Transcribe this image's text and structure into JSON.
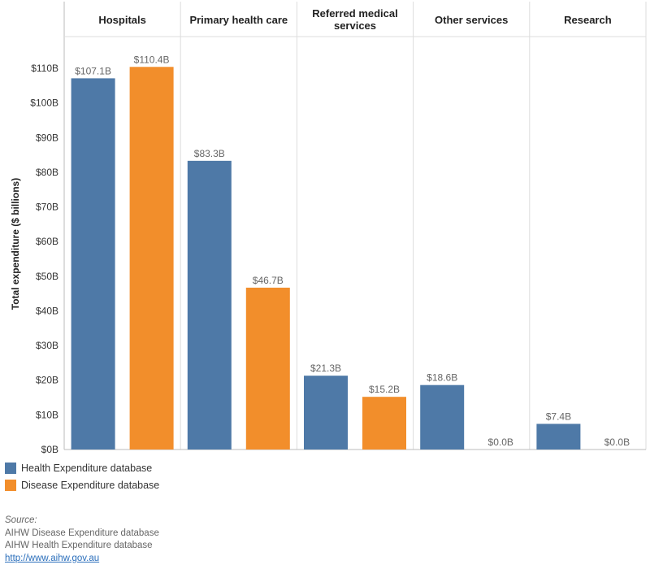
{
  "chart_data": {
    "type": "bar",
    "ylabel": "Total expenditure ($ billions)",
    "ylim": [
      0,
      110
    ],
    "yticks": [
      "$0B",
      "$10B",
      "$20B",
      "$30B",
      "$40B",
      "$50B",
      "$60B",
      "$70B",
      "$80B",
      "$90B",
      "$100B",
      "$110B"
    ],
    "categories": [
      "Hospitals",
      "Primary health care",
      "Referred medical services",
      "Other services",
      "Research"
    ],
    "series": [
      {
        "name": "Health Expenditure database",
        "color": "#4e79a7",
        "values": [
          107.1,
          83.3,
          21.3,
          18.6,
          7.4
        ],
        "labels": [
          "$107.1B",
          "$83.3B",
          "$21.3B",
          "$18.6B",
          "$7.4B"
        ]
      },
      {
        "name": "Disease Expenditure database",
        "color": "#f28e2b",
        "values": [
          110.4,
          46.7,
          15.2,
          0.0,
          0.0
        ],
        "labels": [
          "$110.4B",
          "$46.7B",
          "$15.2B",
          "$0.0B",
          "$0.0B"
        ]
      }
    ],
    "grid": false,
    "legend_position": "bottom-left"
  },
  "source": {
    "title": "Source:",
    "lines": [
      "AIHW Disease Expenditure database",
      "AIHW Health Expenditure database"
    ],
    "link": "http://www.aihw.gov.au"
  }
}
